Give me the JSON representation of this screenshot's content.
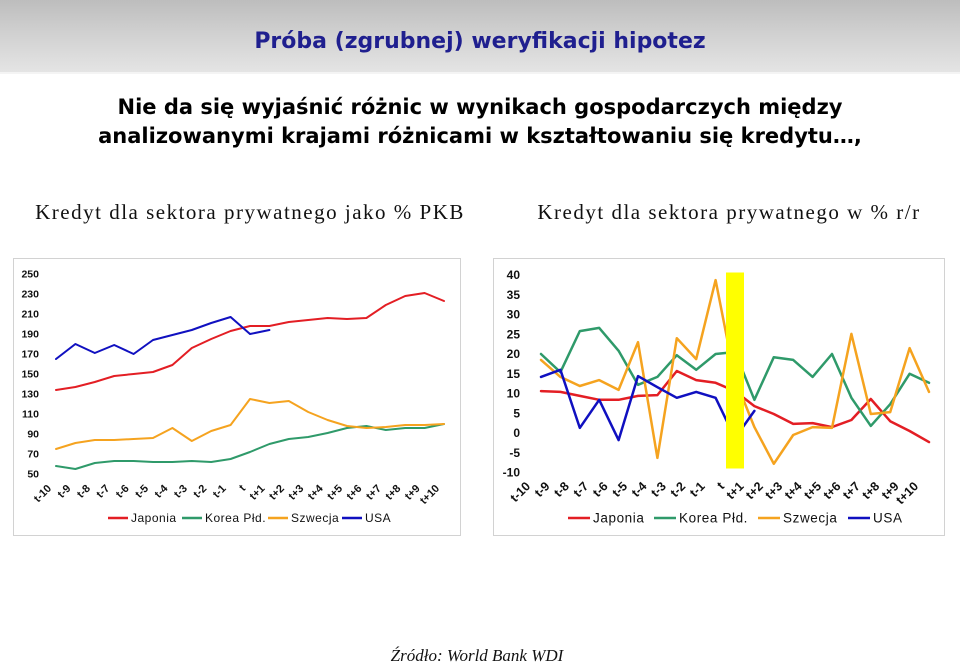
{
  "slide": {
    "title": "Próba (zgrubnej) weryfikacji hipotez",
    "title_color": "#1f1f8f",
    "subtitle_lines": [
      "Nie da się wyjaśnić różnic w wynikach gospodarczych między",
      "analizowanymi krajami różnicami w kształtowaniu się kredytu…,"
    ],
    "source": "Źródło: World Bank WDI"
  },
  "chart_data": [
    {
      "type": "line",
      "title": "Kredyt dla sektora prywatnego jako % PKB",
      "xlabel": "",
      "ylabel": "",
      "categories": [
        "t-10",
        "t-9",
        "t-8",
        "t-7",
        "t-6",
        "t-5",
        "t-4",
        "t-3",
        "t-2",
        "t-1",
        "t",
        "t+1",
        "t+2",
        "t+3",
        "t+4",
        "t+5",
        "t+6",
        "t+7",
        "t+8",
        "t+9",
        "t+10"
      ],
      "ylim": [
        50,
        250
      ],
      "yticks": [
        250,
        230,
        210,
        190,
        170,
        150,
        130,
        110,
        90,
        70,
        50
      ],
      "grid": false,
      "legend": "bottom",
      "series": [
        {
          "name": "Japonia",
          "color": "#e31e24",
          "values": [
            134,
            137,
            142,
            148,
            150,
            152,
            159,
            176,
            185,
            193,
            198,
            198,
            202,
            204,
            206,
            205,
            206,
            219,
            228,
            231,
            223
          ]
        },
        {
          "name": "Korea Płd.",
          "color": "#2f9a6a",
          "values": [
            58,
            55,
            61,
            63,
            63,
            62,
            62,
            63,
            62,
            65,
            72,
            80,
            85,
            87,
            91,
            96,
            98,
            94,
            96,
            96,
            100
          ]
        },
        {
          "name": "Szwecja",
          "color": "#f5a31f",
          "values": [
            75,
            81,
            84,
            84,
            85,
            86,
            96,
            83,
            93,
            99,
            125,
            121,
            123,
            112,
            104,
            98,
            96,
            97,
            99,
            99,
            100
          ]
        },
        {
          "name": "USA",
          "color": "#1010c0",
          "values": [
            165,
            180,
            171,
            179,
            170,
            184,
            189,
            194,
            201,
            207,
            190,
            194,
            null,
            null,
            null,
            null,
            null,
            null,
            null,
            null,
            null
          ]
        }
      ]
    },
    {
      "type": "line",
      "title": "Kredyt dla sektora prywatnego w % r/r",
      "xlabel": "",
      "ylabel": "",
      "categories": [
        "t-10",
        "t-9",
        "t-8",
        "t-7",
        "t-6",
        "t-5",
        "t-4",
        "t-3",
        "t-2",
        "t-1",
        "t",
        "t+1",
        "t+2",
        "t+3",
        "t+4",
        "t+5",
        "t+6",
        "t+7",
        "t+8",
        "t+9",
        "t+10"
      ],
      "ylim": [
        -10,
        40
      ],
      "yticks": [
        40,
        35,
        30,
        25,
        20,
        15,
        10,
        5,
        0,
        -5,
        -10
      ],
      "grid": false,
      "legend": "bottom",
      "highlight": {
        "category": "t",
        "color": "#ffff00"
      },
      "series": [
        {
          "name": "Japonia",
          "color": "#e31e24",
          "values": [
            10.6,
            10.4,
            9.4,
            8.4,
            8.4,
            9.4,
            9.6,
            15.7,
            13.4,
            12.7,
            10.6,
            6.8,
            4.8,
            2.3,
            2.5,
            1.5,
            3.3,
            8.6,
            3.0,
            0.5,
            -2.3
          ]
        },
        {
          "name": "Korea Płd.",
          "color": "#2f9a6a",
          "values": [
            20,
            15.4,
            25.8,
            26.6,
            20.8,
            12.2,
            14.2,
            19.7,
            16,
            20,
            20.5,
            8.4,
            19.2,
            18.5,
            14.2,
            20,
            8.9,
            1.8,
            7.3,
            15,
            12.7
          ]
        },
        {
          "name": "Szwecja",
          "color": "#f5a31f",
          "values": [
            18.5,
            14.2,
            11.9,
            13.4,
            10.9,
            23,
            -6.3,
            24,
            18.7,
            38.7,
            13.7,
            1.5,
            -7.8,
            -0.5,
            1.5,
            1.3,
            25.1,
            4.8,
            5.3,
            21.5,
            10.4
          ]
        },
        {
          "name": "USA",
          "color": "#1010c0",
          "values": [
            14.2,
            16,
            1.3,
            8.4,
            -1.8,
            14.4,
            11.6,
            8.9,
            10.4,
            8.9,
            -1.3,
            5.6,
            null,
            null,
            null,
            null,
            null,
            null,
            null,
            null,
            null
          ]
        }
      ]
    }
  ]
}
